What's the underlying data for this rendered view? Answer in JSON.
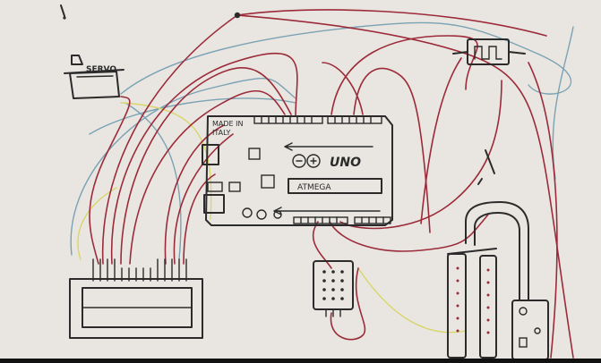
{
  "labels": {
    "servo": "SERVO",
    "made_in_line1": "MADE IN",
    "made_in_line2": "ITALY",
    "board_model": "UNO",
    "chip": "ATMEGA"
  },
  "colors": {
    "paper": "#e9e6e1",
    "ink": "#2b2b2b",
    "wire_red": "#9c2b3a",
    "wire_blue": "#7aa2b4",
    "wire_yellow": "#d8d66a"
  }
}
